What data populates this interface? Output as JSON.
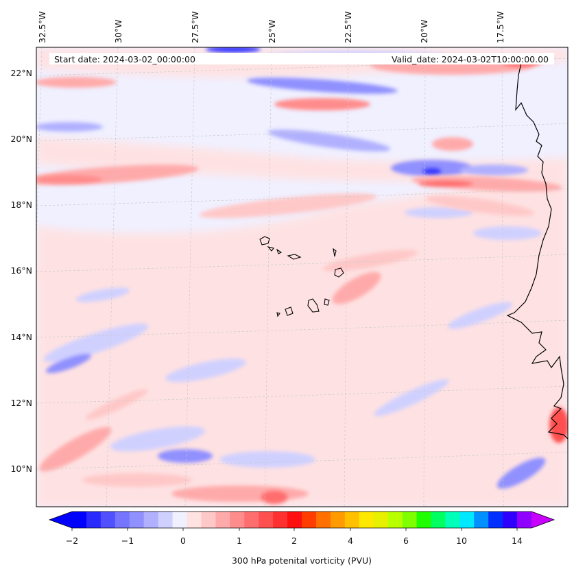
{
  "header": {
    "start_date": "Start date: 2024-03-02_00:00:00",
    "valid_date": "Valid_date: 2024-03-02T10:00:00.00"
  },
  "map": {
    "variable": "300 hPa potential vorticity",
    "lon_labels": [
      "32.5°W",
      "30°W",
      "27.5°W",
      "25°W",
      "22.5°W",
      "20°W",
      "17.5°W"
    ],
    "lat_labels": [
      "22°N",
      "20°N",
      "18°N",
      "16°N",
      "14°N",
      "12°N",
      "10°N"
    ]
  },
  "colorbar": {
    "label": "300 hPa potenital vorticity (PVU)",
    "ticks": [
      "−2",
      "−1",
      "0",
      "1",
      "2",
      "4",
      "6",
      "10",
      "14"
    ],
    "colors": [
      "#0000ff",
      "#2a2aff",
      "#5050ff",
      "#7575ff",
      "#9090ff",
      "#b0b0ff",
      "#d0d0ff",
      "#f0f0ff",
      "#ffe2e2",
      "#ffc8c8",
      "#ffaaaa",
      "#ff8c8c",
      "#ff6e6e",
      "#ff5050",
      "#ff3030",
      "#ff1010",
      "#ff3d00",
      "#ff7000",
      "#ff9a00",
      "#ffc000",
      "#ffe800",
      "#e6f000",
      "#b8ff00",
      "#80ff00",
      "#20ff00",
      "#00ff60",
      "#00ffb8",
      "#00e8ff",
      "#0090ff",
      "#0030ff",
      "#3000ff",
      "#9000ff"
    ],
    "under_color": "#0000ff",
    "over_color": "#c800ff"
  }
}
